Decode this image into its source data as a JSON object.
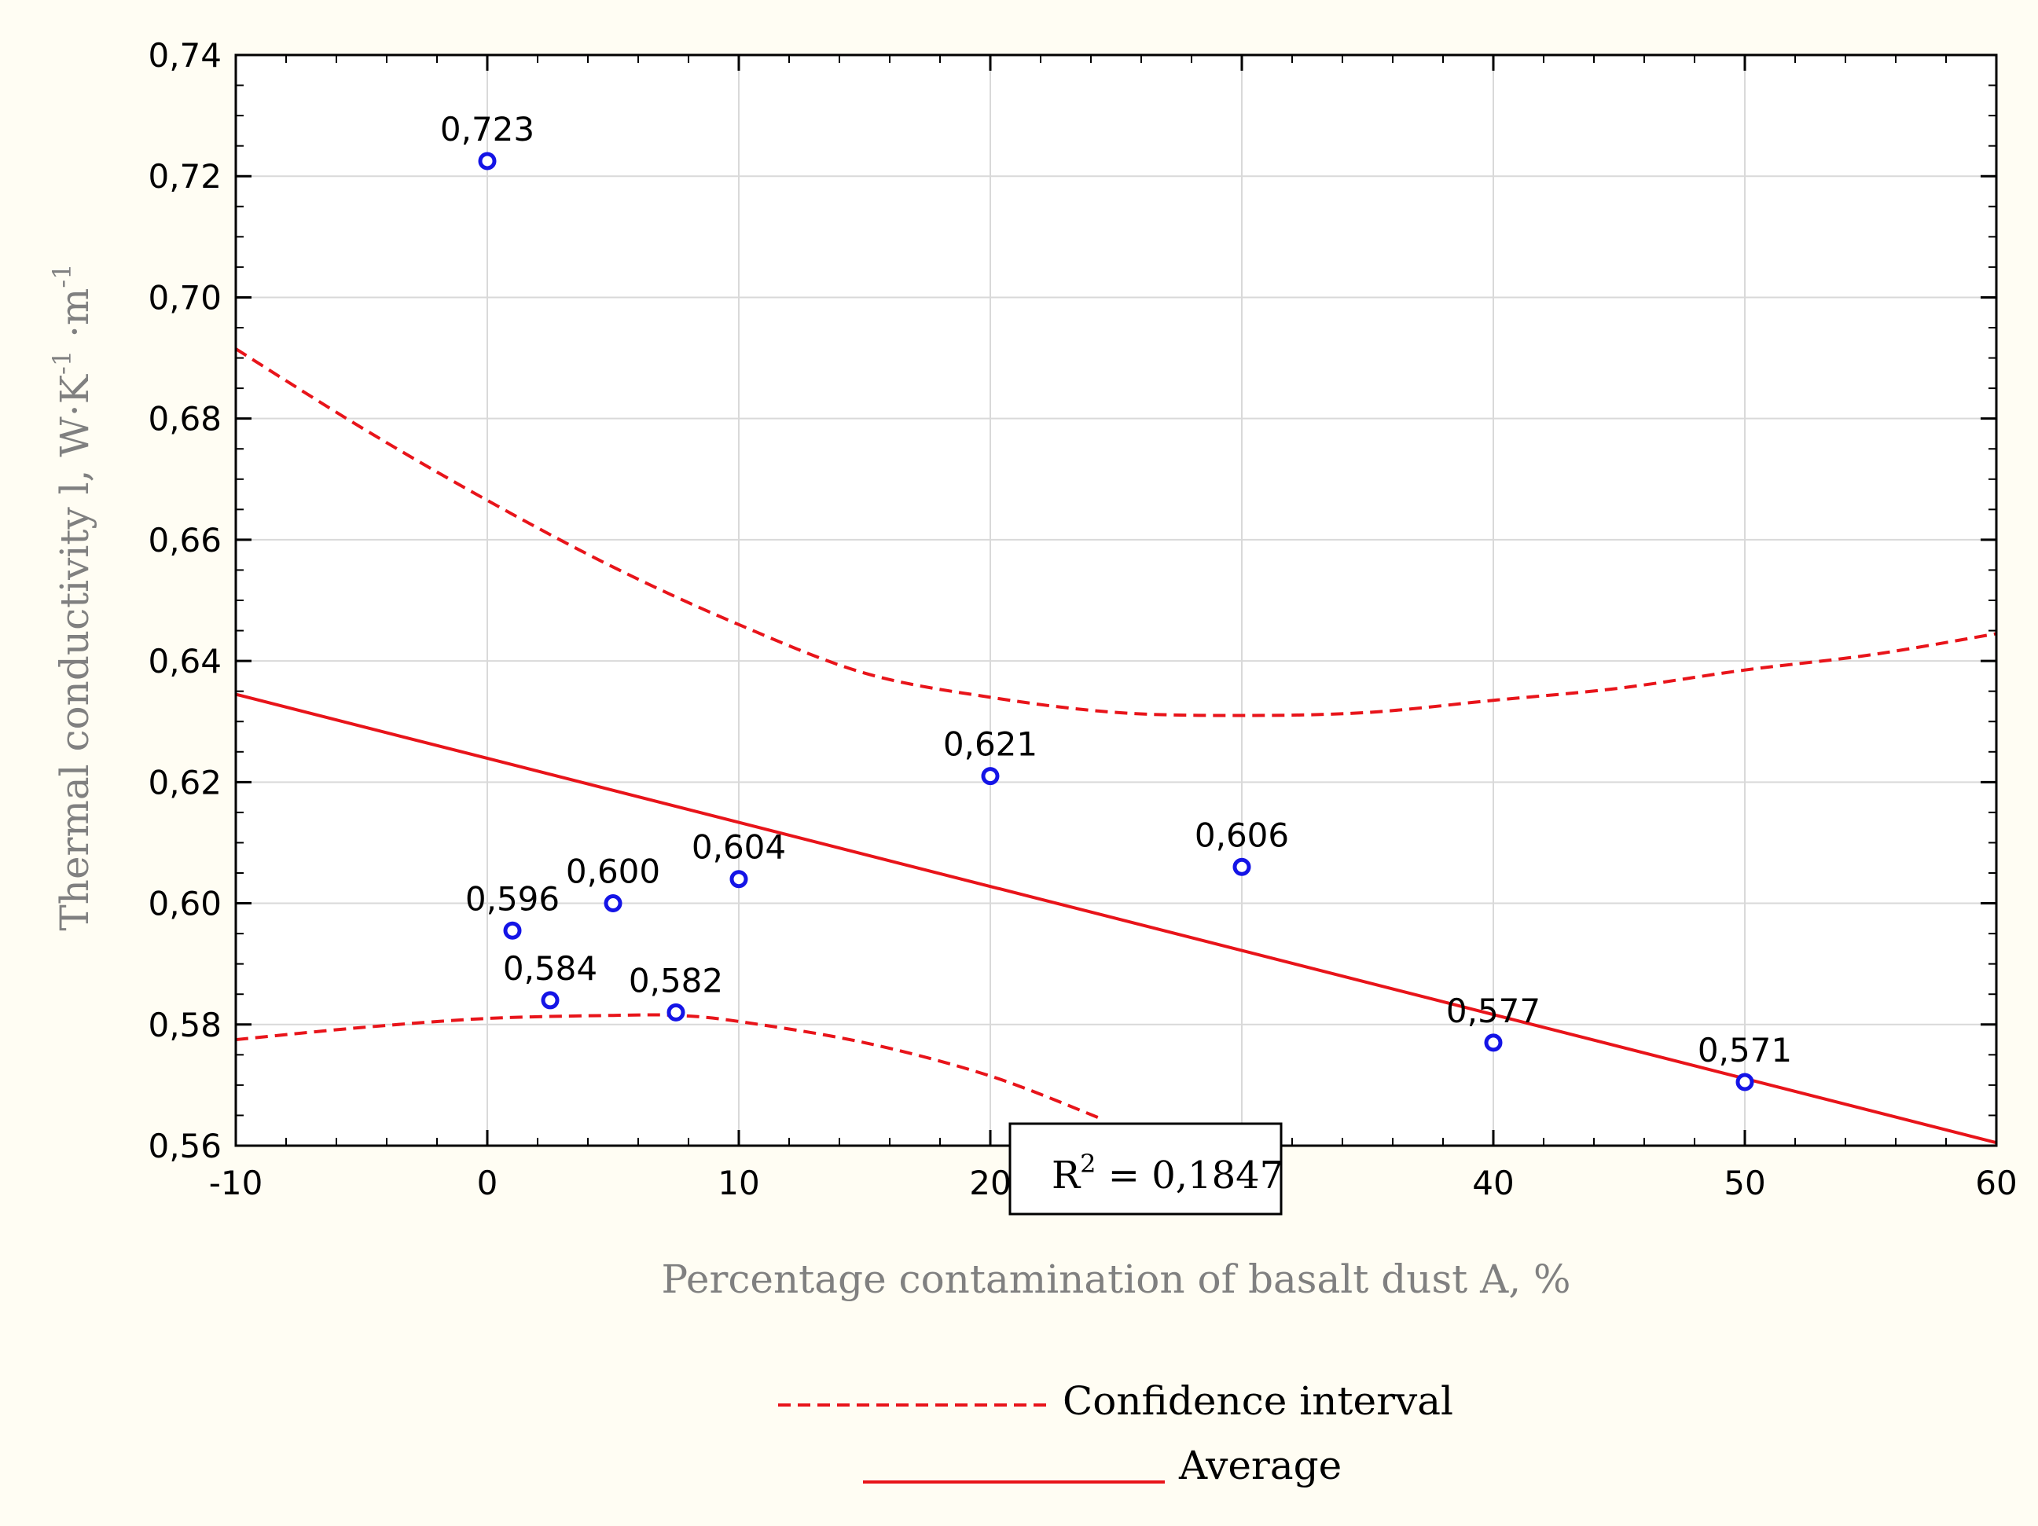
{
  "chart_data": {
    "type": "scatter",
    "title": "",
    "xlabel": "Percentage contamination of basalt dust A, %",
    "ylabel_parts": {
      "main": "Thermal conductivity l, W·K",
      "exp1": "-1",
      "mid": " ·m",
      "exp2": "-1"
    },
    "xlim": [
      -10,
      60
    ],
    "ylim": [
      0.56,
      0.74
    ],
    "x_ticks": [
      -10,
      0,
      10,
      20,
      30,
      40,
      50,
      60
    ],
    "x_tick_labels": [
      "-10",
      "0",
      "10",
      "20",
      "",
      "40",
      "50",
      "60"
    ],
    "y_ticks": [
      0.56,
      0.58,
      0.6,
      0.62,
      0.64,
      0.66,
      0.68,
      0.7,
      0.72,
      0.74
    ],
    "y_tick_labels": [
      "0,56",
      "0,58",
      "0,60",
      "0,62",
      "0,64",
      "0,66",
      "0,68",
      "0,70",
      "0,72",
      "0,74"
    ],
    "grid": true,
    "points": [
      {
        "x": 0,
        "y": 0.7225,
        "label": "0,723"
      },
      {
        "x": 1,
        "y": 0.5955,
        "label": "0,596"
      },
      {
        "x": 2.5,
        "y": 0.584,
        "label": "0,584"
      },
      {
        "x": 5,
        "y": 0.6,
        "label": "0,600"
      },
      {
        "x": 7.5,
        "y": 0.582,
        "label": "0,582"
      },
      {
        "x": 10,
        "y": 0.604,
        "label": "0,604"
      },
      {
        "x": 20,
        "y": 0.621,
        "label": "0,621"
      },
      {
        "x": 30,
        "y": 0.606,
        "label": "0,606"
      },
      {
        "x": 40,
        "y": 0.577,
        "label": "0,577"
      },
      {
        "x": 50,
        "y": 0.5705,
        "label": "0,571"
      }
    ],
    "regression": {
      "x": [
        -10,
        60
      ],
      "y": [
        0.6345,
        0.5605
      ]
    },
    "ci_upper": {
      "x": [
        -10,
        -5,
        0,
        5,
        10,
        15,
        20,
        25,
        30,
        35,
        40,
        45,
        50,
        55,
        60
      ],
      "y": [
        0.6915,
        0.6785,
        0.6665,
        0.6555,
        0.646,
        0.638,
        0.634,
        0.6315,
        0.631,
        0.6315,
        0.6335,
        0.6355,
        0.6385,
        0.641,
        0.6445
      ]
    },
    "ci_lower": {
      "x": [
        -10,
        -5,
        0,
        5,
        7.5,
        10,
        15,
        20,
        24.5
      ],
      "y": [
        0.5775,
        0.5795,
        0.581,
        0.5815,
        0.5815,
        0.5805,
        0.577,
        0.5715,
        0.5643
      ]
    },
    "annotation": {
      "r2_prefix": "R",
      "r2_exp": "2",
      "r2_value": " = 0,1847"
    },
    "legend": {
      "confidence_label": "Confidence interval",
      "average_label": "Average",
      "placement": "bottom-center"
    },
    "colors": {
      "line": "#e8141a",
      "marker": "#1414e6",
      "grid": "#d9d9d9",
      "background": "#fffdf3",
      "plot_background": "#ffffff"
    }
  }
}
